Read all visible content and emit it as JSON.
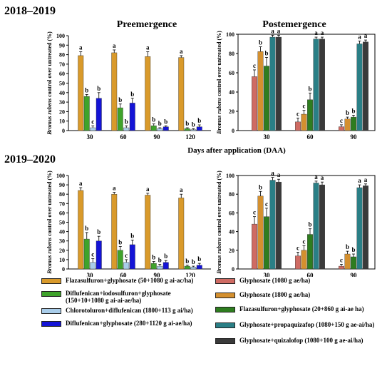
{
  "panel_titles": {
    "top_year": "2018–2019",
    "bottom_year": "2019–2020",
    "pre": "Preemergence",
    "post": "Postemergence"
  },
  "xlabel": "Days after application (DAA)",
  "ylabel_italic": "Bromus rubens",
  "ylabel_rest": " control over untreated (%)",
  "treatments": [
    {
      "name": "Flazasulfuron+glyphosate (50+1080 g ai-ac/ha)",
      "color": "#d99a2b"
    },
    {
      "name": "Diflufenican+iodosulfuron+glyphosate\n(150+10+1080 g ai-ai-ae/ha)",
      "color": "#3fa32b"
    },
    {
      "name": "Chlorotoluron+diflufenican (1800+113 g ai/ha)",
      "color": "#a9cdea"
    },
    {
      "name": "Diflufenican+glyphosate (280+1120 g ai-ae/ha)",
      "color": "#1414d6"
    },
    {
      "name": "Glyphosate (1080 g ae/ha)",
      "color": "#cf6b63"
    },
    {
      "name": "Glyphosate (1800 g ae/ha)",
      "color": "#d4902f"
    },
    {
      "name": "Flazasulfuron+glyphosate (20+860 g ai-ae ha)",
      "color": "#2e7d1f"
    },
    {
      "name": "Glyphosate+propaquizafop (1080+150 g ae-ai/ha)",
      "color": "#2a7f86"
    },
    {
      "name": "Glyphosate+quizalofop (1080+100 g ae-ai/ha)",
      "color": "#3a3a3a"
    }
  ],
  "chart_data": [
    {
      "type": "bar",
      "panel": "top-left",
      "title": "Preemergence",
      "categories": [
        "30",
        "60",
        "90",
        "120"
      ],
      "ylim": [
        0,
        100
      ],
      "yticks": [
        "0",
        "10",
        "20",
        "30",
        "40",
        "50",
        "60",
        "70",
        "80",
        "90",
        "100"
      ],
      "series": [
        {
          "name": "Flazasulfuron+glyphosate (50+1080 g ai-ac/ha)",
          "values": [
            79,
            82,
            78,
            77
          ],
          "errors": [
            4,
            3,
            5,
            2
          ],
          "letters": [
            "a",
            "a",
            "a",
            "a"
          ]
        },
        {
          "name": "Diflufenican+iodosulfuron+glyphosate (150+10+1080 g ai-ai-ae/ha)",
          "values": [
            36,
            24,
            5,
            2
          ],
          "errors": [
            2,
            4,
            2,
            1
          ],
          "letters": [
            "b",
            "b",
            "b",
            "b"
          ]
        },
        {
          "name": "Chlorotoluron+diflufenican (1800+113 g ai/ha)",
          "values": [
            3,
            3,
            2,
            1
          ],
          "errors": [
            2,
            2,
            1,
            1
          ],
          "letters": [
            "c",
            "b",
            "b",
            "b"
          ]
        },
        {
          "name": "Diflufenican+glyphosate (280+1120 g ai-ae/ha)",
          "values": [
            34,
            29,
            4,
            4
          ],
          "errors": [
            6,
            5,
            1,
            2
          ],
          "letters": [
            "b",
            "b",
            "b",
            "b"
          ]
        }
      ]
    },
    {
      "type": "bar",
      "panel": "top-right",
      "title": "Postemergence",
      "categories": [
        "30",
        "60",
        "90"
      ],
      "ylim": [
        0,
        100
      ],
      "yticks": [
        "0",
        "20",
        "40",
        "60",
        "80",
        "100"
      ],
      "series": [
        {
          "name": "Glyphosate (1080 g ae/ha)",
          "values": [
            56,
            9,
            4
          ],
          "errors": [
            7,
            4,
            2
          ],
          "letters": [
            "c",
            "c",
            "c"
          ]
        },
        {
          "name": "Glyphosate (1800 g ae/ha)",
          "values": [
            82,
            17,
            12
          ],
          "errors": [
            5,
            4,
            2
          ],
          "letters": [
            "b",
            "c",
            "b"
          ]
        },
        {
          "name": "Flazasulfuron+glyphosate (20+860 g ai-ae ha)",
          "values": [
            67,
            32,
            14
          ],
          "errors": [
            9,
            7,
            2
          ],
          "letters": [
            "b",
            "b",
            "b"
          ]
        },
        {
          "name": "Glyphosate+propaquizafop (1080+150 g ae-ai/ha)",
          "values": [
            97,
            95,
            90
          ],
          "errors": [
            2,
            2,
            3
          ],
          "letters": [
            "a",
            "a",
            "a"
          ]
        },
        {
          "name": "Glyphosate+quizalofop (1080+100 g ae-ai/ha)",
          "values": [
            97,
            95,
            92
          ],
          "errors": [
            2,
            2,
            2
          ],
          "letters": [
            "a",
            "a",
            "a"
          ]
        }
      ]
    },
    {
      "type": "bar",
      "panel": "bottom-left",
      "title": "",
      "categories": [
        "30",
        "60",
        "90",
        "120"
      ],
      "ylim": [
        0,
        100
      ],
      "yticks": [
        "0",
        "10",
        "20",
        "30",
        "40",
        "50",
        "60",
        "70",
        "80",
        "90",
        "100"
      ],
      "series": [
        {
          "name": "Flazasulfuron+glyphosate (50+1080 g ai-ac/ha)",
          "values": [
            84,
            80,
            79,
            76
          ],
          "errors": [
            3,
            2,
            2,
            4
          ],
          "letters": [
            "a",
            "a",
            "a",
            "a"
          ]
        },
        {
          "name": "Diflufenican+iodosulfuron+glyphosate (150+10+1080 g ai-ai-ae/ha)",
          "values": [
            32,
            20,
            6,
            3
          ],
          "errors": [
            7,
            4,
            2,
            1
          ],
          "letters": [
            "b",
            "b",
            "b",
            "b"
          ]
        },
        {
          "name": "Chlorotoluron+diflufenican (1800+113 g ai/ha)",
          "values": [
            7,
            7,
            3,
            2
          ],
          "errors": [
            4,
            3,
            2,
            1
          ],
          "letters": [
            "c",
            "c",
            "b",
            "b"
          ]
        },
        {
          "name": "Diflufenican+glyphosate (280+1120 g ai-ae/ha)",
          "values": [
            30,
            26,
            7,
            4
          ],
          "errors": [
            5,
            5,
            2,
            2
          ],
          "letters": [
            "b",
            "b",
            "b",
            "b"
          ]
        }
      ]
    },
    {
      "type": "bar",
      "panel": "bottom-right",
      "title": "",
      "categories": [
        "30",
        "60",
        "90"
      ],
      "ylim": [
        0,
        100
      ],
      "yticks": [
        "0",
        "20",
        "40",
        "60",
        "80",
        "100"
      ],
      "series": [
        {
          "name": "Glyphosate (1080 g ae/ha)",
          "values": [
            48,
            14,
            3
          ],
          "errors": [
            8,
            4,
            2
          ],
          "letters": [
            "c",
            "c",
            "c"
          ]
        },
        {
          "name": "Glyphosate (1800 g ae/ha)",
          "values": [
            78,
            20,
            16
          ],
          "errors": [
            5,
            5,
            3
          ],
          "letters": [
            "b",
            "c",
            "b"
          ]
        },
        {
          "name": "Flazasulfuron+glyphosate (20+860 g ai-ae ha)",
          "values": [
            56,
            37,
            13
          ],
          "errors": [
            9,
            6,
            3
          ],
          "letters": [
            "c",
            "b",
            "b"
          ]
        },
        {
          "name": "Glyphosate+propaquizafop (1080+150 g ae-ai/ha)",
          "values": [
            95,
            92,
            87
          ],
          "errors": [
            3,
            2,
            3
          ],
          "letters": [
            "a",
            "a",
            "a"
          ]
        },
        {
          "name": "Glyphosate+quizalofop (1080+100 g ae-ai/ha)",
          "values": [
            93,
            90,
            89
          ],
          "errors": [
            3,
            3,
            2
          ],
          "letters": [
            "a",
            "a",
            "a"
          ]
        }
      ]
    }
  ]
}
